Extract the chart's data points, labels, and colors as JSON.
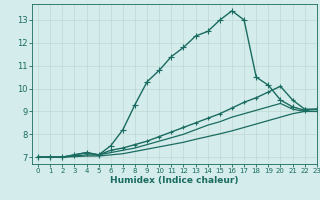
{
  "xlabel": "Humidex (Indice chaleur)",
  "xlim": [
    -0.5,
    23
  ],
  "ylim": [
    6.7,
    13.7
  ],
  "yticks": [
    7,
    8,
    9,
    10,
    11,
    12,
    13
  ],
  "xticks": [
    0,
    1,
    2,
    3,
    4,
    5,
    6,
    7,
    8,
    9,
    10,
    11,
    12,
    13,
    14,
    15,
    16,
    17,
    18,
    19,
    20,
    21,
    22,
    23
  ],
  "bg_color": "#d4eceb",
  "line_color": "#1a6b60",
  "grid_color": "#c0d8d4",
  "lines": [
    {
      "x": [
        0,
        1,
        2,
        3,
        4,
        5,
        6,
        7,
        8,
        9,
        10,
        11,
        12,
        13,
        14,
        15,
        16,
        17,
        18,
        19,
        20,
        21,
        22,
        23
      ],
      "y": [
        7.0,
        7.0,
        7.0,
        7.1,
        7.2,
        7.1,
        7.5,
        8.2,
        9.3,
        10.3,
        10.8,
        11.4,
        11.8,
        12.3,
        12.5,
        13.0,
        13.4,
        13.0,
        10.5,
        10.15,
        9.5,
        9.2,
        9.05,
        9.1
      ],
      "marker": "+",
      "markersize": 4,
      "linewidth": 1.0
    },
    {
      "x": [
        0,
        1,
        2,
        3,
        4,
        5,
        6,
        7,
        8,
        9,
        10,
        11,
        12,
        13,
        14,
        15,
        16,
        17,
        18,
        19,
        20,
        21,
        22,
        23
      ],
      "y": [
        7.0,
        7.0,
        7.0,
        7.1,
        7.2,
        7.1,
        7.3,
        7.4,
        7.55,
        7.7,
        7.9,
        8.1,
        8.3,
        8.5,
        8.7,
        8.9,
        9.15,
        9.4,
        9.6,
        9.85,
        10.1,
        9.5,
        9.1,
        9.1
      ],
      "marker": "+",
      "markersize": 3,
      "linewidth": 1.0
    },
    {
      "x": [
        0,
        1,
        2,
        3,
        4,
        5,
        6,
        7,
        8,
        9,
        10,
        11,
        12,
        13,
        14,
        15,
        16,
        17,
        18,
        19,
        20,
        21,
        22,
        23
      ],
      "y": [
        7.0,
        7.0,
        7.0,
        7.05,
        7.1,
        7.1,
        7.2,
        7.3,
        7.4,
        7.55,
        7.7,
        7.85,
        8.0,
        8.2,
        8.4,
        8.55,
        8.75,
        8.9,
        9.05,
        9.2,
        9.35,
        9.1,
        9.0,
        9.0
      ],
      "marker": null,
      "markersize": 0,
      "linewidth": 0.9
    },
    {
      "x": [
        0,
        1,
        2,
        3,
        4,
        5,
        6,
        7,
        8,
        9,
        10,
        11,
        12,
        13,
        14,
        15,
        16,
        17,
        18,
        19,
        20,
        21,
        22,
        23
      ],
      "y": [
        7.0,
        7.0,
        7.0,
        7.02,
        7.05,
        7.05,
        7.1,
        7.15,
        7.25,
        7.35,
        7.45,
        7.55,
        7.65,
        7.78,
        7.9,
        8.02,
        8.15,
        8.3,
        8.45,
        8.6,
        8.75,
        8.9,
        9.0,
        9.0
      ],
      "marker": null,
      "markersize": 0,
      "linewidth": 0.9
    }
  ]
}
